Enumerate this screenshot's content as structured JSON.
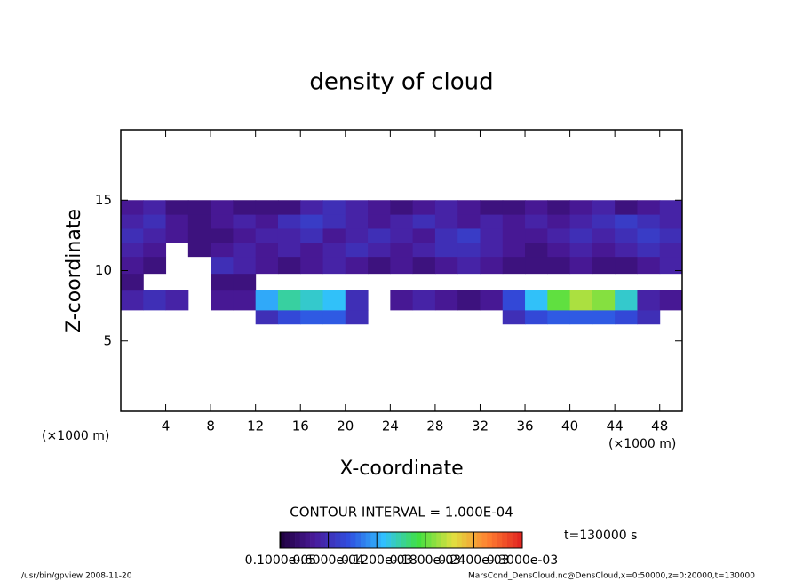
{
  "chart_data": {
    "type": "heatmap",
    "title": "density of cloud",
    "x_label": "X-coordinate",
    "y_label": "Z-coordinate",
    "x_unit": "(×1000 m)",
    "x_unit_right": "(×1000 m)",
    "xlim": [
      0,
      50
    ],
    "xticks": [
      4,
      8,
      12,
      16,
      20,
      24,
      28,
      32,
      36,
      40,
      44,
      48
    ],
    "ylim": [
      0,
      20
    ],
    "yticks": [
      5,
      10,
      15
    ],
    "x_edges": [
      0,
      2,
      4,
      6,
      8,
      10,
      12,
      14,
      16,
      18,
      20,
      22,
      24,
      26,
      28,
      30,
      32,
      34,
      36,
      38,
      40,
      42,
      44,
      46,
      48,
      50
    ],
    "z_edges": [
      6.2,
      7.2,
      8.6,
      9.8,
      11,
      12,
      13,
      14,
      15
    ],
    "values": [
      [
        null,
        null,
        null,
        null,
        null,
        null,
        6e-05,
        8e-05,
        9e-05,
        9e-05,
        6e-05,
        null,
        null,
        null,
        null,
        null,
        null,
        6e-05,
        8e-05,
        9e-05,
        9e-05,
        9e-05,
        8e-05,
        6e-05,
        null
      ],
      [
        5e-05,
        6e-05,
        5e-05,
        null,
        4e-05,
        4e-05,
        0.00012,
        0.00015,
        0.00014,
        0.00013,
        6e-05,
        null,
        4e-05,
        5e-05,
        4e-05,
        3e-05,
        4e-05,
        8e-05,
        0.00013,
        0.00018,
        0.0002,
        0.00019,
        0.00014,
        5e-05,
        4e-05
      ],
      [
        3e-05,
        null,
        null,
        null,
        3e-05,
        3e-05,
        null,
        null,
        null,
        null,
        null,
        null,
        null,
        null,
        null,
        null,
        null,
        null,
        null,
        null,
        null,
        null,
        null,
        null,
        null
      ],
      [
        4e-05,
        3e-05,
        null,
        null,
        6e-05,
        5e-05,
        4e-05,
        3e-05,
        4e-05,
        5e-05,
        4e-05,
        3e-05,
        4e-05,
        3e-05,
        4e-05,
        5e-05,
        4e-05,
        3e-05,
        3e-05,
        3e-05,
        4e-05,
        3e-05,
        3e-05,
        4e-05,
        5e-05
      ],
      [
        5e-05,
        4e-05,
        null,
        3e-05,
        4e-05,
        5e-05,
        4e-05,
        5e-05,
        4e-05,
        5e-05,
        6e-05,
        5e-05,
        4e-05,
        5e-05,
        6e-05,
        6e-05,
        5e-05,
        4e-05,
        3e-05,
        4e-05,
        5e-05,
        4e-05,
        5e-05,
        6e-05,
        5e-05
      ],
      [
        6e-05,
        5e-05,
        4e-05,
        3e-05,
        3e-05,
        4e-05,
        5e-05,
        5e-05,
        6e-05,
        4e-05,
        5e-05,
        6e-05,
        5e-05,
        4e-05,
        6e-05,
        7e-05,
        5e-05,
        4e-05,
        4e-05,
        5e-05,
        6e-05,
        5e-05,
        6e-05,
        7e-05,
        6e-05
      ],
      [
        5e-05,
        6e-05,
        4e-05,
        3e-05,
        4e-05,
        5e-05,
        4e-05,
        6e-05,
        7e-05,
        6e-05,
        5e-05,
        4e-05,
        5e-05,
        6e-05,
        5e-05,
        4e-05,
        5e-05,
        4e-05,
        5e-05,
        4e-05,
        5e-05,
        6e-05,
        7e-05,
        6e-05,
        5e-05
      ],
      [
        4e-05,
        5e-05,
        3e-05,
        3e-05,
        4e-05,
        3e-05,
        3e-05,
        3e-05,
        5e-05,
        6e-05,
        5e-05,
        4e-05,
        3e-05,
        4e-05,
        5e-05,
        4e-05,
        3e-05,
        3e-05,
        4e-05,
        3e-05,
        4e-05,
        5e-05,
        3e-05,
        4e-05,
        5e-05
      ]
    ],
    "clim": [
      0,
      0.0003
    ],
    "colors": [
      "#1e003c",
      "#4a1a9a",
      "#2f4fe0",
      "#30c0ff",
      "#40e040",
      "#e0e040",
      "#ff8030",
      "#e02020"
    ],
    "colorbar_ticks": [
      {
        "value": 1e-06,
        "label": "0.1000e-05"
      },
      {
        "value": 6e-05,
        "label": "0.6000e-04"
      },
      {
        "value": 0.00012,
        "label": "0.1200e-03"
      },
      {
        "value": 0.00018,
        "label": "0.1800e-03"
      },
      {
        "value": 0.00024,
        "label": "0.2400e-03"
      },
      {
        "value": 0.0003,
        "label": "0.3000e-03"
      }
    ],
    "contour_interval": "CONTOUR INTERVAL = 1.000E-04",
    "time": "t=130000 s",
    "footer_left": "/usr/bin/gpview   2008-11-20",
    "footer_right": "MarsCond_DensCloud.nc@DensCloud,x=0:50000,z=0:20000,t=130000"
  }
}
